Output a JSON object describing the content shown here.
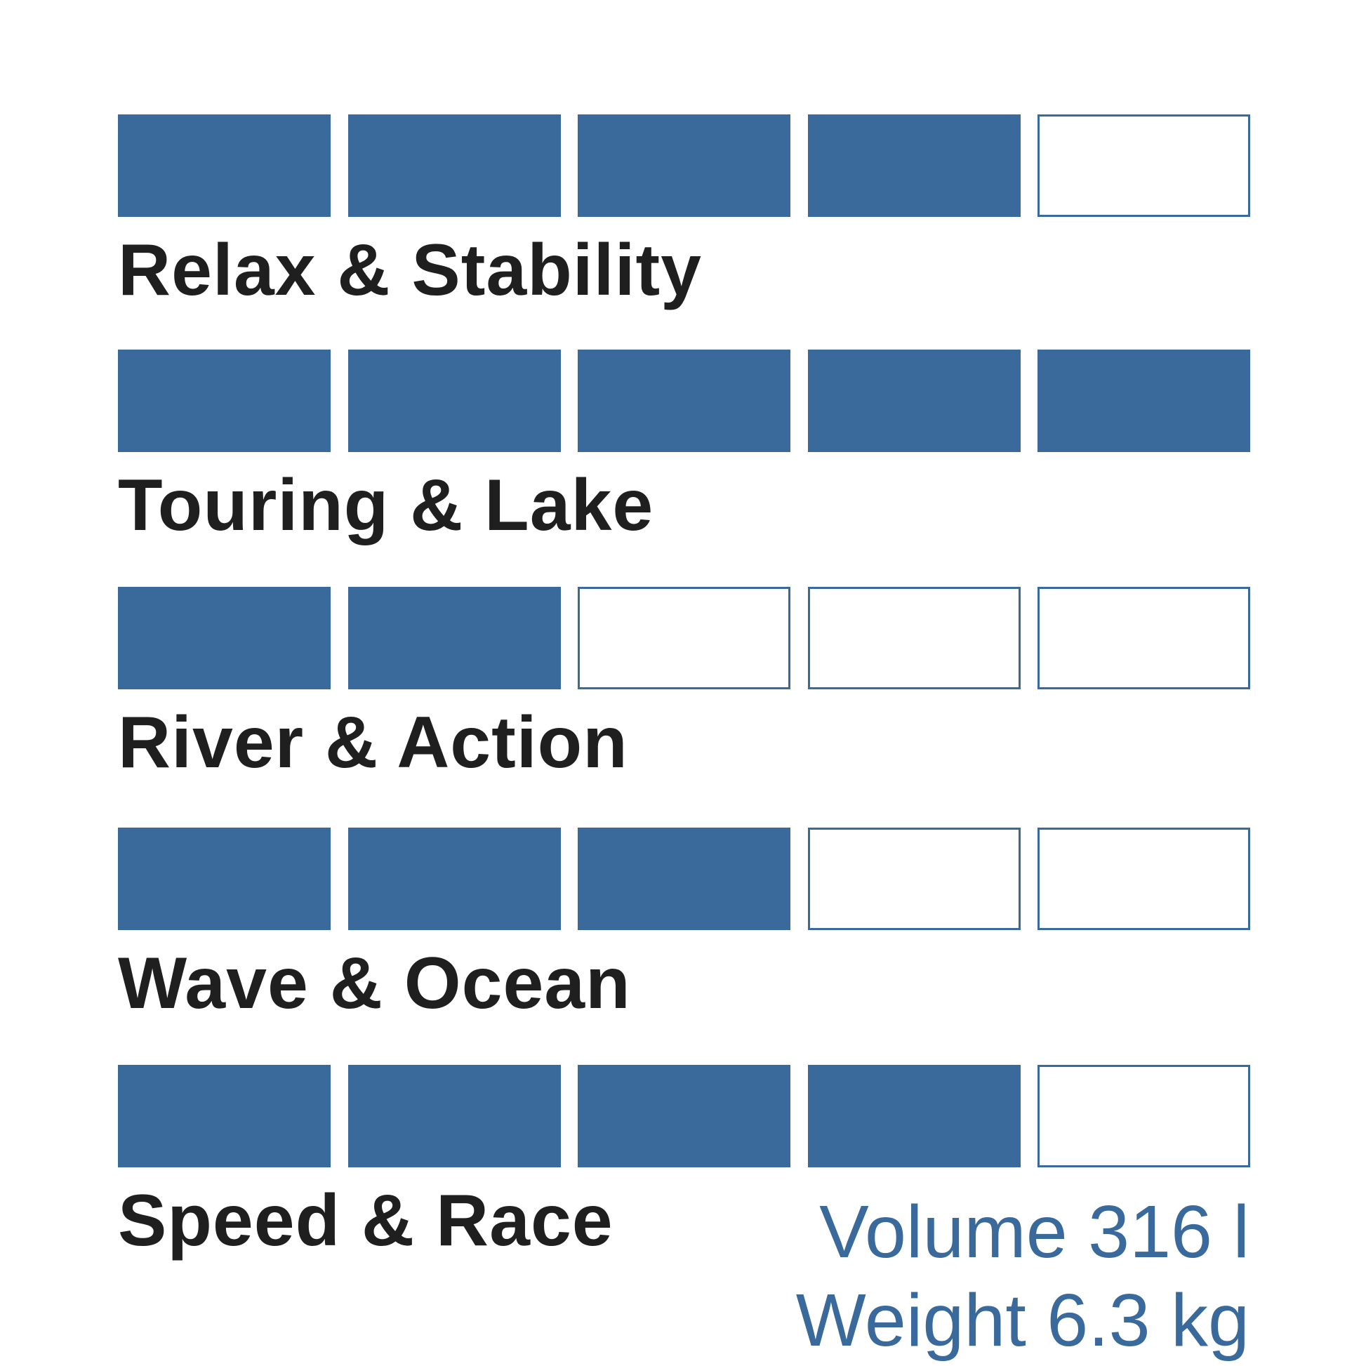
{
  "chart_data": {
    "type": "rating",
    "max": 5,
    "categories": [
      "Relax & Stability",
      "Touring & Lake",
      "River & Action",
      "Wave & Ocean",
      "Speed & Race"
    ],
    "values": [
      4,
      5,
      2,
      3,
      4
    ],
    "color": "#3a6a9b",
    "label_color": "#1f1f1f"
  },
  "specs": {
    "volume": "Volume 316 l",
    "weight": "Weight 6.3 kg"
  }
}
